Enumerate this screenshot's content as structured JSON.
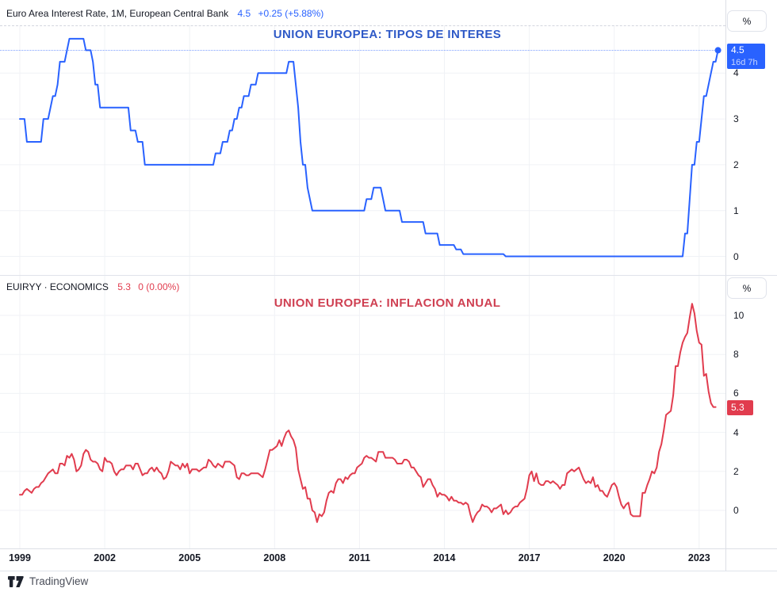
{
  "panes": [
    {
      "header": {
        "symbol": "Euro Area Interest Rate, 1M, European Central Bank",
        "value": "4.5",
        "change": "+0.25 (+5.88%)"
      },
      "title": "UNION EUROPEA: TIPOS DE INTERES",
      "percent_button": "%",
      "price_label": {
        "value": "4.5",
        "countdown": "16d 7h"
      },
      "y_axis": {
        "unit": "%",
        "ticks": [
          "4",
          "3",
          "2",
          "1",
          "0"
        ]
      }
    },
    {
      "header": {
        "symbol": "EUIRYY · ECONOMICS",
        "value": "5.3",
        "change": "0 (0.00%)"
      },
      "title": "UNION EUROPEA: INFLACION ANUAL",
      "percent_button": "%",
      "price_label": {
        "value": "5.3"
      },
      "y_axis": {
        "unit": "%",
        "ticks": [
          "10",
          "8",
          "6",
          "4",
          "2",
          "0"
        ]
      }
    }
  ],
  "time_axis": {
    "labels": [
      "1999",
      "2002",
      "2005",
      "2008",
      "2011",
      "2014",
      "2017",
      "2020",
      "2023"
    ]
  },
  "footer": {
    "brand": "TradingView"
  },
  "colors": {
    "series_blue": "#2962ff",
    "series_red": "#e13c4e",
    "title_blue": "#2e59c7",
    "title_red": "#cf3f51",
    "grid": "#f0f2f6",
    "axis_text": "#131722",
    "label_blue_bg": "#2962ff",
    "label_red_bg": "#e13c4e"
  },
  "chart_data": [
    {
      "type": "line",
      "series_name": "Euro Area Interest Rate, 1M, European Central Bank",
      "pane": "top",
      "title": "UNION EUROPEA: TIPOS DE INTERES",
      "color": "#2962ff",
      "unit": "%",
      "last_value": 4.5,
      "last_change": "+0.25 (+5.88%)",
      "x_start_year": 1999,
      "x_interval_months": 1,
      "x_tick_labels": [
        1999,
        2002,
        2005,
        2008,
        2011,
        2014,
        2017,
        2020,
        2023
      ],
      "y_ticks": [
        4,
        3,
        2,
        1,
        0
      ],
      "ylim": [
        -0.4,
        5.0
      ],
      "grid": true,
      "legend_position": "top-left",
      "end_marker": true,
      "values": [
        3,
        3,
        3,
        2.5,
        2.5,
        2.5,
        2.5,
        2.5,
        2.5,
        2.5,
        3,
        3,
        3,
        3.25,
        3.5,
        3.5,
        3.75,
        4.25,
        4.25,
        4.25,
        4.5,
        4.75,
        4.75,
        4.75,
        4.75,
        4.75,
        4.75,
        4.75,
        4.5,
        4.5,
        4.5,
        4.25,
        3.75,
        3.75,
        3.25,
        3.25,
        3.25,
        3.25,
        3.25,
        3.25,
        3.25,
        3.25,
        3.25,
        3.25,
        3.25,
        3.25,
        3.25,
        2.75,
        2.75,
        2.75,
        2.5,
        2.5,
        2.5,
        2,
        2,
        2,
        2,
        2,
        2,
        2,
        2,
        2,
        2,
        2,
        2,
        2,
        2,
        2,
        2,
        2,
        2,
        2,
        2,
        2,
        2,
        2,
        2,
        2,
        2,
        2,
        2,
        2,
        2,
        2.25,
        2.25,
        2.25,
        2.5,
        2.5,
        2.5,
        2.75,
        2.75,
        3,
        3,
        3.25,
        3.25,
        3.5,
        3.5,
        3.5,
        3.75,
        3.75,
        3.75,
        4,
        4,
        4,
        4,
        4,
        4,
        4,
        4,
        4,
        4,
        4,
        4,
        4,
        4.25,
        4.25,
        4.25,
        3.75,
        3.25,
        2.5,
        2,
        2,
        1.5,
        1.25,
        1,
        1,
        1,
        1,
        1,
        1,
        1,
        1,
        1,
        1,
        1,
        1,
        1,
        1,
        1,
        1,
        1,
        1,
        1,
        1,
        1,
        1,
        1,
        1.25,
        1.25,
        1.25,
        1.5,
        1.5,
        1.5,
        1.5,
        1.25,
        1,
        1,
        1,
        1,
        1,
        1,
        1,
        0.75,
        0.75,
        0.75,
        0.75,
        0.75,
        0.75,
        0.75,
        0.75,
        0.75,
        0.75,
        0.5,
        0.5,
        0.5,
        0.5,
        0.5,
        0.5,
        0.25,
        0.25,
        0.25,
        0.25,
        0.25,
        0.25,
        0.25,
        0.15,
        0.15,
        0.15,
        0.05,
        0.05,
        0.05,
        0.05,
        0.05,
        0.05,
        0.05,
        0.05,
        0.05,
        0.05,
        0.05,
        0.05,
        0.05,
        0.05,
        0.05,
        0.05,
        0.05,
        0.05,
        0,
        0,
        0,
        0,
        0,
        0,
        0,
        0,
        0,
        0,
        0,
        0,
        0,
        0,
        0,
        0,
        0,
        0,
        0,
        0,
        0,
        0,
        0,
        0,
        0,
        0,
        0,
        0,
        0,
        0,
        0,
        0,
        0,
        0,
        0,
        0,
        0,
        0,
        0,
        0,
        0,
        0,
        0,
        0,
        0,
        0,
        0,
        0,
        0,
        0,
        0,
        0,
        0,
        0,
        0,
        0,
        0,
        0,
        0,
        0,
        0,
        0,
        0,
        0,
        0,
        0,
        0,
        0,
        0,
        0,
        0,
        0,
        0,
        0,
        0,
        0,
        0.5,
        0.5,
        1.25,
        2,
        2,
        2.5,
        2.5,
        3,
        3.5,
        3.5,
        3.75,
        4,
        4.25,
        4.25,
        4.5
      ]
    },
    {
      "type": "line",
      "series_name": "EUIRYY · ECONOMICS (Euro Area Inflation Rate YoY)",
      "pane": "bottom",
      "title": "UNION EUROPEA: INFLACION ANUAL",
      "color": "#e13c4e",
      "unit": "%",
      "last_value": 5.3,
      "last_change": "0 (0.00%)",
      "x_start_year": 1999,
      "x_interval_months": 1,
      "x_tick_labels": [
        1999,
        2002,
        2005,
        2008,
        2011,
        2014,
        2017,
        2020,
        2023
      ],
      "y_ticks": [
        10,
        8,
        6,
        4,
        2,
        0
      ],
      "ylim": [
        -2.0,
        12.0
      ],
      "grid": true,
      "legend_position": "top-left",
      "end_marker": false,
      "values": [
        0.8,
        0.8,
        1,
        1.1,
        1,
        0.9,
        1.1,
        1.2,
        1.2,
        1.4,
        1.5,
        1.7,
        1.9,
        2,
        2.1,
        1.9,
        1.9,
        2.4,
        2.4,
        2.3,
        2.8,
        2.7,
        2.9,
        2.6,
        2,
        2.1,
        2.3,
        2.9,
        3.1,
        3,
        2.6,
        2.5,
        2.5,
        2.4,
        2.1,
        2,
        2.7,
        2.5,
        2.5,
        2.4,
        2,
        1.8,
        2,
        2.1,
        2.1,
        2.3,
        2.3,
        2.3,
        2.1,
        2.4,
        2.4,
        2.1,
        1.8,
        1.9,
        1.9,
        2.1,
        2.2,
        2,
        2.2,
        2,
        1.9,
        1.6,
        1.7,
        2,
        2.5,
        2.4,
        2.3,
        2.3,
        2.1,
        2.4,
        2.2,
        2.4,
        1.9,
        2.1,
        2.1,
        2.1,
        2,
        2.1,
        2.2,
        2.2,
        2.6,
        2.5,
        2.3,
        2.2,
        2.4,
        2.3,
        2.2,
        2.5,
        2.5,
        2.5,
        2.4,
        2.3,
        1.7,
        1.6,
        1.9,
        1.9,
        1.8,
        1.8,
        1.9,
        1.9,
        1.9,
        1.9,
        1.8,
        1.7,
        2.1,
        2.6,
        3.1,
        3.1,
        3.2,
        3.3,
        3.6,
        3.3,
        3.7,
        4,
        4.1,
        3.8,
        3.6,
        3.2,
        2.1,
        1.6,
        1.1,
        1.2,
        0.6,
        0.6,
        0,
        -0.1,
        -0.6,
        -0.2,
        -0.3,
        -0.1,
        0.5,
        0.9,
        1,
        0.9,
        1.4,
        1.6,
        1.6,
        1.4,
        1.7,
        1.6,
        1.8,
        1.9,
        1.9,
        2.2,
        2.3,
        2.4,
        2.7,
        2.8,
        2.7,
        2.7,
        2.6,
        2.5,
        3,
        3,
        3,
        2.7,
        2.7,
        2.7,
        2.7,
        2.6,
        2.4,
        2.4,
        2.4,
        2.6,
        2.6,
        2.5,
        2.2,
        2.2,
        2,
        1.8,
        1.7,
        1.2,
        1.4,
        1.6,
        1.6,
        1.3,
        1.1,
        0.7,
        0.9,
        0.8,
        0.8,
        0.7,
        0.5,
        0.7,
        0.5,
        0.5,
        0.4,
        0.4,
        0.3,
        0.4,
        0.3,
        -0.2,
        -0.6,
        -0.3,
        -0.1,
        0,
        0.3,
        0.2,
        0.2,
        0.1,
        -0.1,
        0.1,
        0.1,
        0.2,
        0.3,
        -0.2,
        0,
        -0.2,
        -0.1,
        0.1,
        0.2,
        0.2,
        0.4,
        0.5,
        0.6,
        1.1,
        1.8,
        2,
        1.5,
        1.9,
        1.4,
        1.3,
        1.3,
        1.5,
        1.5,
        1.4,
        1.5,
        1.4,
        1.3,
        1.1,
        1.3,
        1.3,
        1.9,
        2,
        2.1,
        2,
        2.1,
        2.2,
        1.9,
        1.6,
        1.4,
        1.5,
        1.4,
        1.7,
        1.2,
        1.3,
        1,
        1,
        0.8,
        0.7,
        1,
        1.3,
        1.4,
        1.2,
        0.7,
        0.3,
        0.1,
        0.3,
        0.4,
        -0.2,
        -0.3,
        -0.3,
        -0.3,
        -0.3,
        0.9,
        0.9,
        1.3,
        1.6,
        2,
        1.9,
        2.2,
        3,
        3.4,
        4.1,
        4.9,
        5,
        5.1,
        5.9,
        7.4,
        7.4,
        8.1,
        8.6,
        8.9,
        9.1,
        9.9,
        10.6,
        10.1,
        9.2,
        8.6,
        8.5,
        6.9,
        7,
        6.1,
        5.5,
        5.3,
        5.3
      ]
    }
  ]
}
